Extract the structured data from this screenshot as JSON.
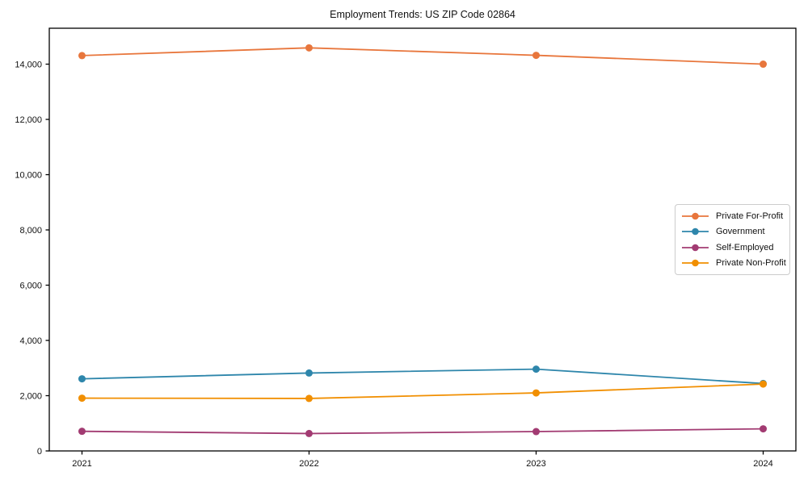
{
  "figure": {
    "background_color": "#ffffff",
    "axis_color": "#000000",
    "text_color": "#111111"
  },
  "chart_data": {
    "type": "line",
    "title": "Employment Trends: US ZIP Code 02864",
    "xlabel": "",
    "ylabel": "",
    "categories": [
      "2021",
      "2022",
      "2023",
      "2024"
    ],
    "series": [
      {
        "name": "Private For-Profit",
        "color": "#E8763C",
        "values": [
          14310,
          14590,
          14320,
          14000
        ]
      },
      {
        "name": "Government",
        "color": "#2E86AB",
        "values": [
          2610,
          2820,
          2960,
          2440
        ]
      },
      {
        "name": "Self-Employed",
        "color": "#A23B72",
        "values": [
          710,
          630,
          700,
          800
        ]
      },
      {
        "name": "Private Non-Profit",
        "color": "#F18F01",
        "values": [
          1910,
          1900,
          2100,
          2420
        ]
      }
    ],
    "ylim": [
      0,
      15300
    ],
    "yticks": {
      "values": [
        0,
        2000,
        4000,
        6000,
        8000,
        10000,
        12000,
        14000
      ],
      "labels": [
        "0",
        "2,000",
        "4,000",
        "6,000",
        "8,000",
        "10,000",
        "12,000",
        "14,000"
      ]
    },
    "xticks": [
      "2021",
      "2022",
      "2023",
      "2024"
    ],
    "grid": false,
    "marker": "o",
    "legend_position": "center right"
  }
}
